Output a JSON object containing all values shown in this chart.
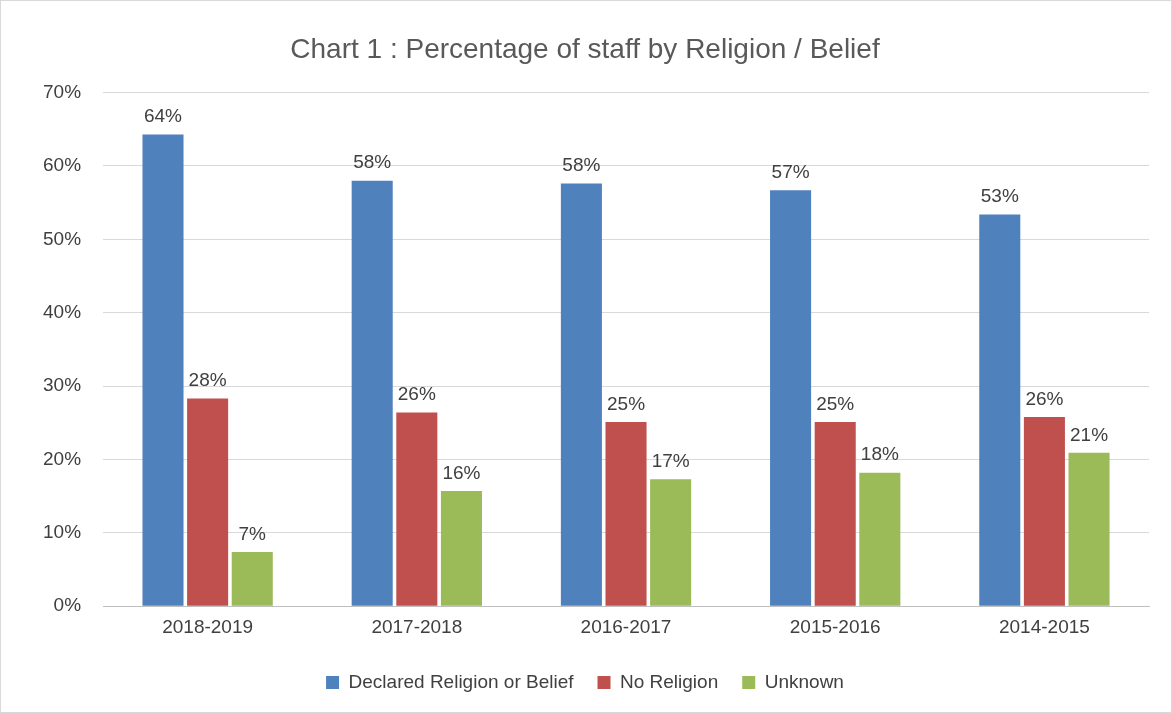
{
  "chart_data": {
    "type": "bar",
    "title": "Chart 1 : Percentage of staff by Religion / Belief",
    "categories": [
      "2018-2019",
      "2017-2018",
      "2016-2017",
      "2015-2016",
      "2014-2015"
    ],
    "series": [
      {
        "name": "Declared Religion or Belief",
        "color": "#4f81bd",
        "values": [
          64.3,
          58,
          57.6,
          56.7,
          53.4
        ],
        "value_labels": [
          "64%",
          "58%",
          "58%",
          "57%",
          "53%"
        ]
      },
      {
        "name": "No Religion",
        "color": "#c0504d",
        "values": [
          28.3,
          26.4,
          25.1,
          25.1,
          25.8
        ],
        "value_labels": [
          "28%",
          "26%",
          "25%",
          "25%",
          "26%"
        ]
      },
      {
        "name": "Unknown",
        "color": "#9bbb59",
        "values": [
          7.4,
          15.7,
          17.3,
          18.2,
          20.9
        ],
        "value_labels": [
          "7%",
          "16%",
          "17%",
          "18%",
          "21%"
        ]
      }
    ],
    "ylim": [
      0,
      70
    ],
    "yticks": [
      {
        "value": 0,
        "label": "0%"
      },
      {
        "value": 10,
        "label": "10%"
      },
      {
        "value": 20,
        "label": "20%"
      },
      {
        "value": 30,
        "label": "30%"
      },
      {
        "value": 40,
        "label": "40%"
      },
      {
        "value": 50,
        "label": "50%"
      },
      {
        "value": 60,
        "label": "60%"
      },
      {
        "value": 70,
        "label": "70%"
      }
    ],
    "grid": "y",
    "legend": "bottom"
  }
}
